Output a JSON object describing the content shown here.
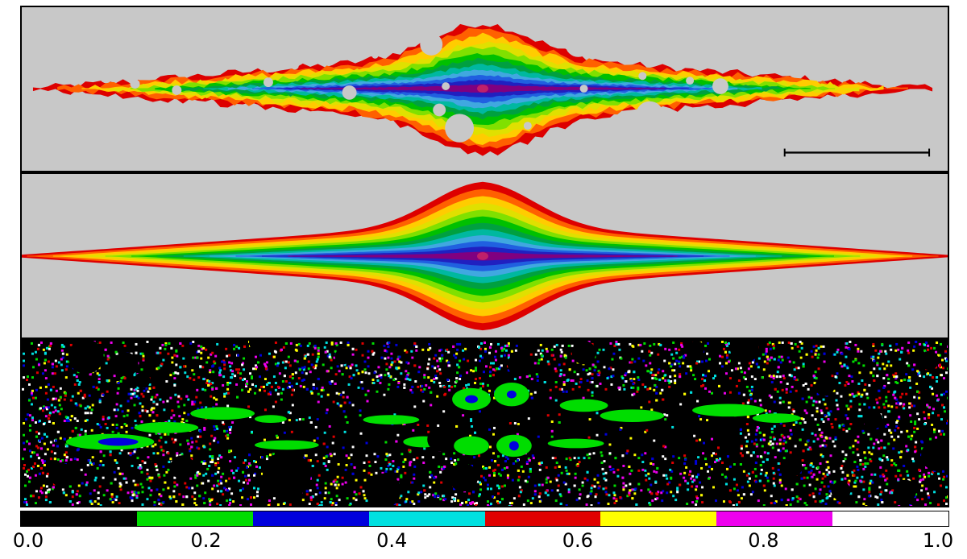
{
  "panels": [
    {
      "name": "observed-galaxy-image"
    },
    {
      "name": "model-galaxy-image"
    },
    {
      "name": "residual-map"
    }
  ],
  "colorbar": {
    "colors": [
      "#000000",
      "#00dd00",
      "#0000dd",
      "#00e0e0",
      "#e00000",
      "#ffff00",
      "#ee00ee",
      "#ffffff"
    ],
    "ticks": [
      "0.0",
      "0.2",
      "0.4",
      "0.6",
      "0.8",
      "1.0"
    ]
  },
  "contour_colors": [
    "#dd0000",
    "#ff6000",
    "#ffcc00",
    "#e0e000",
    "#80e000",
    "#00c000",
    "#00a040",
    "#00b8a0",
    "#40a8e0",
    "#2060e0",
    "#2020c0",
    "#800080"
  ]
}
